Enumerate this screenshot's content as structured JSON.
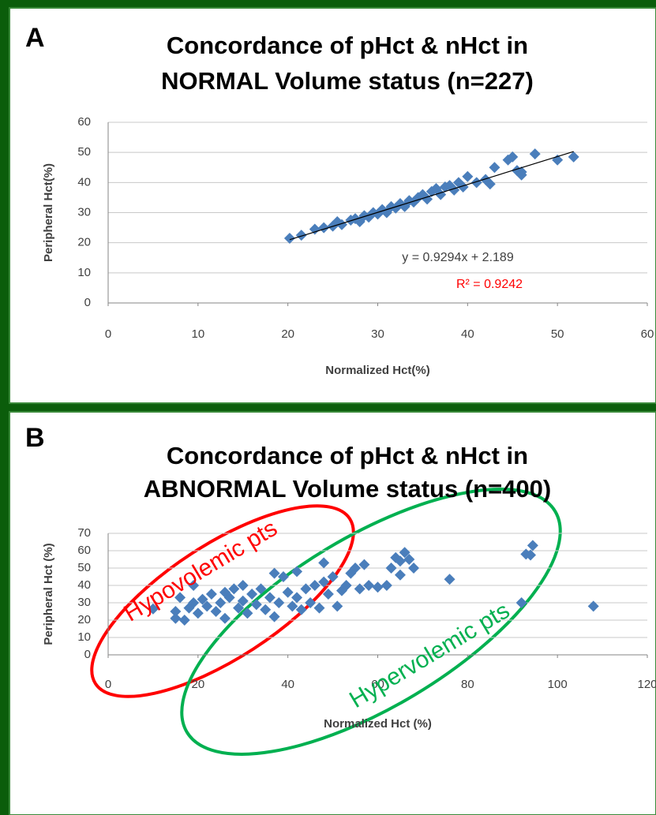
{
  "chart_data": [
    {
      "type": "scatter",
      "panel": "A",
      "title": [
        "Concordance of pHct & nHct in",
        "NORMAL Volume status (n=227)"
      ],
      "x_label": "Normalized Hct(%)",
      "y_label": "Peripheral Hct(%)",
      "color": "#4a7ebb",
      "x": [
        20.2,
        21.5,
        23,
        24,
        25,
        25.5,
        26,
        27,
        27.5,
        28,
        28.5,
        29,
        29.5,
        30,
        30.5,
        31,
        31.5,
        32,
        32.5,
        33,
        33.5,
        34,
        34.5,
        35,
        35.5,
        36,
        36.5,
        37,
        37.5,
        38,
        38.5,
        39,
        39.5,
        40,
        41,
        42,
        42.5,
        43,
        44.5,
        45,
        45.5,
        46,
        46,
        47.5,
        50,
        51.8
      ],
      "values": [
        21.5,
        22.5,
        24.5,
        25,
        25.5,
        27,
        26,
        27.5,
        28,
        27,
        29,
        28.5,
        30,
        29.5,
        31,
        30,
        32,
        31.5,
        33,
        32,
        34,
        33.5,
        35,
        36,
        34.5,
        37,
        38,
        36,
        38.5,
        39,
        37.5,
        40,
        38.5,
        42,
        40,
        41,
        39.5,
        45,
        47.5,
        48.5,
        44,
        42.5,
        43.5,
        49.5,
        47.5,
        48.5
      ],
      "trendline": {
        "x": [
          20.2,
          51.8
        ],
        "values": [
          21,
          50.3
        ],
        "color": "#000000"
      },
      "annotations": [
        {
          "text": "y = 0.9294x + 2.189",
          "color": "#404040"
        },
        {
          "text": "R² = 0.9242",
          "color": "#ff0000"
        }
      ],
      "xlim": [
        0,
        60
      ],
      "xticks": [
        0,
        10,
        20,
        30,
        40,
        50,
        60
      ],
      "ylim": [
        0,
        60
      ],
      "yticks": [
        0,
        10,
        20,
        30,
        40,
        50,
        60
      ],
      "grid": true
    },
    {
      "type": "scatter",
      "panel": "B",
      "title": [
        "Concordance of pHct & nHct in",
        "ABNORMAL Volume status (n=400)"
      ],
      "x_label": "Normalized Hct (%)",
      "y_label": "Peripheral Hct (%)",
      "color": "#4a7ebb",
      "x": [
        10,
        15,
        15,
        16,
        17,
        18,
        19,
        19,
        20,
        21,
        22,
        23,
        24,
        25,
        26,
        26,
        27,
        28,
        29,
        30,
        30,
        31,
        32,
        33,
        34,
        35,
        36,
        37,
        37,
        38,
        39,
        40,
        41,
        42,
        42,
        43,
        44,
        45,
        46,
        47,
        48,
        48,
        49,
        50,
        51,
        52,
        53,
        54,
        55,
        56,
        57,
        58,
        60,
        62,
        63,
        64,
        65,
        65,
        66,
        67,
        68,
        76,
        92,
        93,
        94,
        94.5,
        108
      ],
      "values": [
        26.5,
        25,
        21,
        33,
        20,
        27,
        40,
        30,
        24,
        32,
        28,
        35,
        25,
        30,
        36,
        21,
        33,
        38,
        27,
        40,
        31,
        24,
        35,
        29,
        38,
        26,
        33,
        47,
        22,
        30,
        45,
        36,
        28,
        48,
        33,
        26,
        38,
        30,
        40,
        27,
        42,
        53,
        35,
        45,
        28,
        37,
        40,
        47,
        50,
        38,
        52,
        40,
        39,
        40,
        50,
        56,
        54,
        46,
        59,
        55,
        50,
        43.5,
        30,
        58,
        57.5,
        63,
        28
      ],
      "annotations": [
        {
          "text": "Hypovolemic pts",
          "color": "#ff0000"
        },
        {
          "text": "Hypervolemic pts",
          "color": "#00b050"
        }
      ],
      "xlim": [
        0,
        120
      ],
      "xticks": [
        0,
        20,
        40,
        60,
        80,
        100,
        120
      ],
      "ylim": [
        0,
        70
      ],
      "yticks": [
        0,
        10,
        20,
        30,
        40,
        50,
        60,
        70
      ],
      "grid": true
    }
  ]
}
